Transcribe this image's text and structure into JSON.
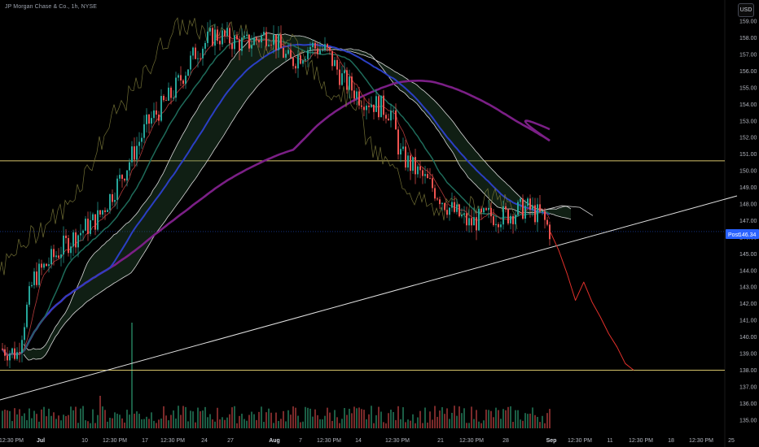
{
  "header": {
    "symbol_title": "JP Morgan Chase & Co., 1h, NYSE",
    "currency_button": "USD"
  },
  "colors": {
    "background": "#000000",
    "up": "#26a69a",
    "down": "#ef5350",
    "ma_purple": "#7b1f86",
    "ma_blue": "#2b3fc4",
    "ma_teal": "#1e6b5a",
    "ichimoku_white": "#d8d8d8",
    "level_yellow": "#d6c46a",
    "trendline": "#e0e0e0",
    "projection": "#e0302a",
    "post_label": "#2962ff"
  },
  "chart_data": {
    "type": "candlestick",
    "title": "",
    "y_ticks": [
      135,
      136,
      137,
      138,
      139,
      140,
      141,
      142,
      143,
      144,
      145,
      146,
      147,
      148,
      149,
      150,
      151,
      152,
      153,
      154,
      155,
      156,
      157,
      158,
      159
    ],
    "ylim": [
      134.5,
      159.3
    ],
    "x_ticks": [
      {
        "label": "12:30 PM",
        "bold": false
      },
      {
        "label": "Jul",
        "bold": true
      },
      {
        "label": "10",
        "bold": false
      },
      {
        "label": "12:30 PM",
        "bold": false
      },
      {
        "label": "17",
        "bold": false
      },
      {
        "label": "12:30 PM",
        "bold": false
      },
      {
        "label": "24",
        "bold": false
      },
      {
        "label": "27",
        "bold": false
      },
      {
        "label": "Aug",
        "bold": true
      },
      {
        "label": "7",
        "bold": false
      },
      {
        "label": "12:30 PM",
        "bold": false
      },
      {
        "label": "14",
        "bold": false
      },
      {
        "label": "12:30 PM",
        "bold": false
      },
      {
        "label": "21",
        "bold": false
      },
      {
        "label": "12:30 PM",
        "bold": false
      },
      {
        "label": "28",
        "bold": false
      },
      {
        "label": "Sep",
        "bold": true
      },
      {
        "label": "12:30 PM",
        "bold": false
      },
      {
        "label": "11",
        "bold": false
      },
      {
        "label": "12:30 PM",
        "bold": false
      },
      {
        "label": "18",
        "bold": false
      },
      {
        "label": "12:30 PM",
        "bold": false
      },
      {
        "label": "25",
        "bold": false
      }
    ],
    "horizontal_levels": [
      150.6,
      138.0
    ],
    "last_price": {
      "label": "Post",
      "value": "146.34"
    },
    "projection_path": [
      {
        "t": 0.0,
        "price": 146.3
      },
      {
        "t": 0.1,
        "price": 145.2
      },
      {
        "t": 0.2,
        "price": 143.8
      },
      {
        "t": 0.3,
        "price": 142.2
      },
      {
        "t": 0.4,
        "price": 143.3
      },
      {
        "t": 0.5,
        "price": 142.1
      },
      {
        "t": 0.6,
        "price": 141.2
      },
      {
        "t": 0.7,
        "price": 140.2
      },
      {
        "t": 0.8,
        "price": 139.4
      },
      {
        "t": 0.9,
        "price": 138.4
      },
      {
        "t": 1.0,
        "price": 138.0
      }
    ]
  }
}
